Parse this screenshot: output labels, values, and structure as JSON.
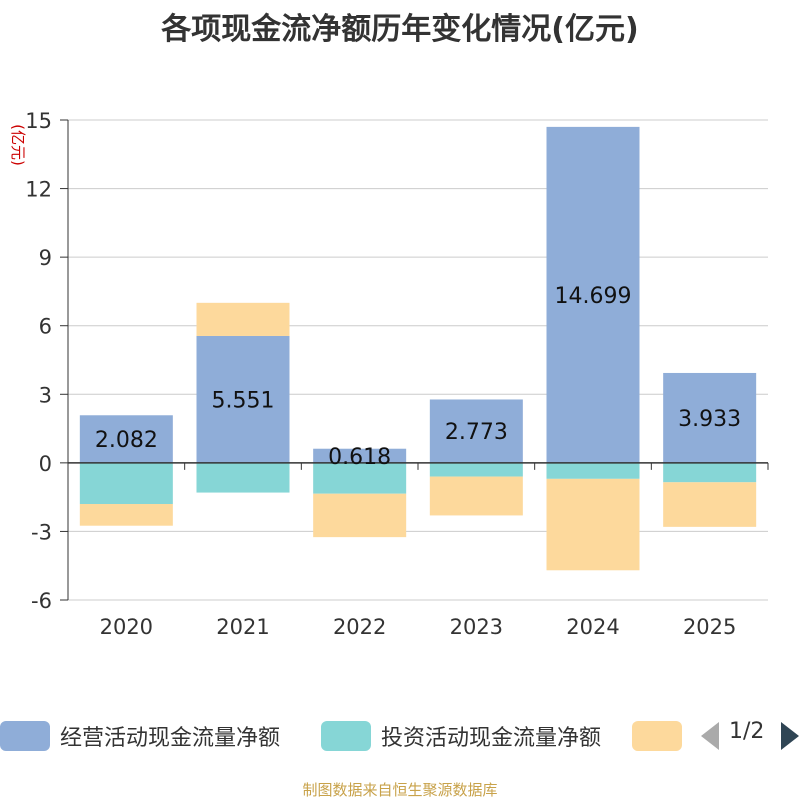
{
  "chart_data": {
    "type": "bar",
    "stacked": true,
    "title": "各项现金流净额历年变化情况(亿元)",
    "ylabel": "(亿元)",
    "xlabel": "",
    "categories": [
      "2020",
      "2021",
      "2022",
      "2023",
      "2024",
      "2025"
    ],
    "ylim": [
      -6,
      15
    ],
    "yticks": [
      -6,
      -3,
      0,
      3,
      6,
      9,
      12,
      15
    ],
    "grid": true,
    "series": [
      {
        "name": "经营活动现金流量净额",
        "color": "#8fadd8",
        "values": [
          2.082,
          5.551,
          0.618,
          2.773,
          14.699,
          3.933
        ],
        "show_labels": true
      },
      {
        "name": "投资活动现金流量净额",
        "color": "#86d6d6",
        "values": [
          -1.8,
          -1.3,
          -1.35,
          -0.6,
          -0.7,
          -0.85
        ],
        "show_labels": false
      },
      {
        "name": "",
        "color": "#fdd99c",
        "values": [
          -0.95,
          1.45,
          -1.9,
          -1.7,
          -4.0,
          -1.95
        ],
        "show_labels": false
      }
    ],
    "data_labels": [
      "2.082",
      "5.551",
      "0.618",
      "2.773",
      "14.699",
      "3.933"
    ],
    "legend": {
      "position": "bottom",
      "labels": [
        "经营活动现金流量净额",
        "投资活动现金流量净额",
        ""
      ],
      "page": "1/2"
    }
  },
  "source": "制图数据来自恒生聚源数据库"
}
